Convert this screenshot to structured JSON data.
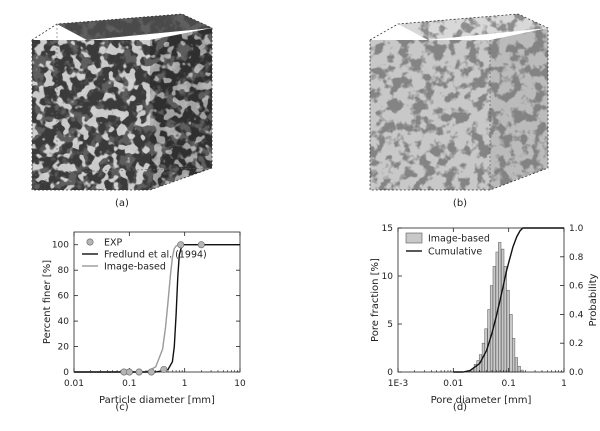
{
  "figure": {
    "panels": {
      "a": {
        "label": "(a)"
      },
      "b": {
        "label": "(b)"
      },
      "c": {
        "label": "(c)"
      },
      "d": {
        "label": "(d)"
      }
    },
    "colors": {
      "cube_a_solid": "#3a3a3a",
      "cube_a_highlight": "#bdbdbd",
      "cube_b_solid": "#cfcfcf",
      "cube_b_pore": "#3e3e3e",
      "fredlund_line": "#111111",
      "image_line": "#9a9a9a",
      "exp_marker": "#b5b5b5",
      "hist_bar": "#c8c8c8"
    }
  },
  "chart_data": [
    {
      "type": "line",
      "panel": "(c)",
      "xlabel": "Particle diameter [mm]",
      "ylabel": "Percent finer [%]",
      "xscale": "log",
      "xlim": [
        0.01,
        10
      ],
      "ylim": [
        0,
        110
      ],
      "x_ticks": [
        0.01,
        0.1,
        1,
        10
      ],
      "x_tick_labels": [
        "0.01",
        "0.1",
        "1",
        "10"
      ],
      "y_ticks": [
        0,
        20,
        40,
        60,
        80,
        100
      ],
      "y_tick_labels": [
        "0",
        "20",
        "40",
        "60",
        "80",
        "100"
      ],
      "legend": "top-left",
      "grid": false,
      "series": [
        {
          "name": "EXP",
          "style": "markers",
          "x": [
            0.08,
            0.1,
            0.15,
            0.25,
            0.42,
            0.85,
            2.0
          ],
          "y": [
            0,
            0,
            0,
            0,
            2,
            100,
            100
          ]
        },
        {
          "name": "Fredlund et al. (1994)",
          "style": "line",
          "x": [
            0.01,
            0.3,
            0.5,
            0.6,
            0.65,
            0.7,
            0.75,
            0.8,
            0.9,
            2.0,
            10
          ],
          "y": [
            0,
            0,
            2,
            8,
            20,
            45,
            75,
            92,
            100,
            100,
            100
          ]
        },
        {
          "name": "Image-based",
          "style": "line",
          "x": [
            0.01,
            0.2,
            0.3,
            0.4,
            0.45,
            0.5,
            0.55,
            0.6,
            0.65,
            0.7,
            0.8,
            10
          ],
          "y": [
            0,
            0,
            4,
            18,
            35,
            55,
            75,
            90,
            97,
            99,
            100,
            100
          ]
        }
      ]
    },
    {
      "type": "bar",
      "panel": "(d)",
      "xlabel": "Pore diameter [mm]",
      "ylabel": "Pore fraction [%]",
      "y2label": "Probability",
      "xscale": "log",
      "xlim": [
        0.001,
        1
      ],
      "ylim": [
        0,
        15
      ],
      "y2lim": [
        0,
        1.0
      ],
      "x_ticks": [
        0.001,
        0.01,
        0.1,
        1
      ],
      "x_tick_labels": [
        "1E-3",
        "0.01",
        "0.1",
        "1"
      ],
      "y_ticks": [
        0,
        5,
        10,
        15
      ],
      "y_tick_labels": [
        "0",
        "5",
        "10",
        "15"
      ],
      "y2_ticks": [
        0,
        0.2,
        0.4,
        0.6,
        0.8,
        1.0
      ],
      "y2_tick_labels": [
        "0.0",
        "0.2",
        "0.4",
        "0.6",
        "0.8",
        "1.0"
      ],
      "legend": "top-left",
      "grid": false,
      "series": [
        {
          "name": "Image-based",
          "style": "histogram",
          "x": [
            0.022,
            0.025,
            0.028,
            0.031,
            0.035,
            0.039,
            0.044,
            0.049,
            0.055,
            0.062,
            0.069,
            0.078,
            0.087,
            0.098,
            0.11,
            0.123,
            0.138,
            0.155,
            0.174
          ],
          "y": [
            0.3,
            0.8,
            1.2,
            1.8,
            3.0,
            4.5,
            6.5,
            9.0,
            11.0,
            12.5,
            13.5,
            12.8,
            11.0,
            8.5,
            6.0,
            3.5,
            1.5,
            0.6,
            0.2
          ]
        },
        {
          "name": "Cumulative",
          "style": "line",
          "axis": "right",
          "x": [
            0.01,
            0.015,
            0.02,
            0.03,
            0.04,
            0.05,
            0.06,
            0.07,
            0.08,
            0.09,
            0.1,
            0.12,
            0.14,
            0.16,
            0.18,
            0.2,
            0.3,
            1.0
          ],
          "y": [
            0.0,
            0.0,
            0.01,
            0.06,
            0.15,
            0.27,
            0.39,
            0.5,
            0.6,
            0.69,
            0.76,
            0.87,
            0.94,
            0.98,
            1.0,
            1.0,
            1.0,
            1.0
          ]
        }
      ]
    }
  ]
}
